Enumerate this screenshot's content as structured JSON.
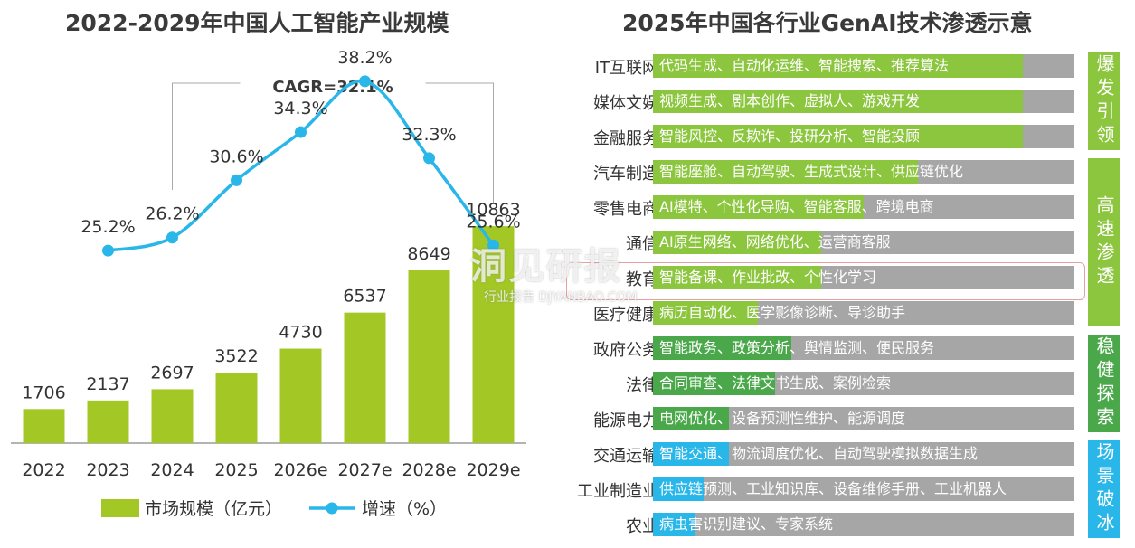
{
  "left": {
    "title": "2022-2029年中国人工智能产业规模",
    "cagr": "CAGR=32.1%",
    "legend": {
      "bar": "市场规模（亿元）",
      "line": "增速（%）"
    }
  },
  "right": {
    "title": "2025年中国各行业GenAI技术渗透示意",
    "watermark": "洞见研报",
    "watermark_sub": "行业报告 DJYANBAO.COM",
    "stages": [
      {
        "label": "爆发引领",
        "color": "#8cc63f"
      },
      {
        "label": "高速渗透",
        "color": "#8cc63f"
      },
      {
        "label": "稳健探索",
        "color": "#4aa84a"
      },
      {
        "label": "场景破冰",
        "color": "#29b6e8"
      }
    ],
    "industries": [
      {
        "name": "IT互联网",
        "text": "代码生成、自动化运维、智能搜索、推荐算法",
        "level": 0.88,
        "color": "#8cc63f"
      },
      {
        "name": "媒体文娱",
        "text": "视频生成、剧本创作、虚拟人、游戏开发",
        "level": 0.88,
        "color": "#8cc63f"
      },
      {
        "name": "金融服务",
        "text": "智能风控、反欺诈、投研分析、智能投顾",
        "level": 0.88,
        "color": "#8cc63f"
      },
      {
        "name": "汽车制造",
        "text": "智能座舱、自动驾驶、生成式设计、供应链优化",
        "level": 0.63,
        "color": "#8cc63f"
      },
      {
        "name": "零售电商",
        "text": "AI模特、个性化导购、智能客服、跨境电商",
        "level": 0.5,
        "color": "#8cc63f"
      },
      {
        "name": "通信",
        "text": "AI原生网络、网络优化、运营商客服",
        "level": 0.4,
        "color": "#8cc63f"
      },
      {
        "name": "教育",
        "text": "智能备课、作业批改、个性化学习",
        "level": 0.4,
        "color": "#8cc63f"
      },
      {
        "name": "医疗健康",
        "text": "病历自动化、医学影像诊断、导诊助手",
        "level": 0.25,
        "color": "#8cc63f"
      },
      {
        "name": "政府公务",
        "text": "智能政务、政策分析、舆情监测、便民服务",
        "level": 0.33,
        "color": "#4aa84a"
      },
      {
        "name": "法律",
        "text": "合同审查、法律文书生成、案例检索",
        "level": 0.29,
        "color": "#4aa84a"
      },
      {
        "name": "能源电力",
        "text": "电网优化、设备预测性维护、能源调度",
        "level": 0.18,
        "color": "#4aa84a"
      },
      {
        "name": "交通运输",
        "text": "智能交通、物流调度优化、自动驾驶模拟数据生成",
        "level": 0.18,
        "color": "#29b6e8"
      },
      {
        "name": "工业制造业",
        "text": "供应链预测、工业知识库、设备维修手册、工业机器人",
        "level": 0.12,
        "color": "#29b6e8"
      },
      {
        "name": "农业",
        "text": "病虫害识别建议、专家系统",
        "level": 0.1,
        "color": "#29b6e8"
      }
    ]
  },
  "chart_data": {
    "type": "bar",
    "title": "2022-2029年中国人工智能产业规模",
    "categories": [
      "2022",
      "2023",
      "2024",
      "2025",
      "2026e",
      "2027e",
      "2028e",
      "2029e"
    ],
    "series": [
      {
        "name": "市场规模（亿元）",
        "type": "bar",
        "values": [
          1706,
          2137,
          2697,
          3522,
          4730,
          6537,
          8649,
          10863
        ],
        "color": "#a3c826"
      },
      {
        "name": "增速（%）",
        "type": "line",
        "values": [
          null,
          25.2,
          26.2,
          30.6,
          34.3,
          38.2,
          32.3,
          25.6
        ],
        "labels": [
          null,
          "25.2%",
          "26.2%",
          "30.6%",
          "34.3%",
          "38.2%",
          "32.3%",
          "25.6%"
        ],
        "color": "#29b6e8"
      }
    ],
    "annotation": "CAGR=32.1%",
    "grid": false,
    "legend": "bottom"
  }
}
